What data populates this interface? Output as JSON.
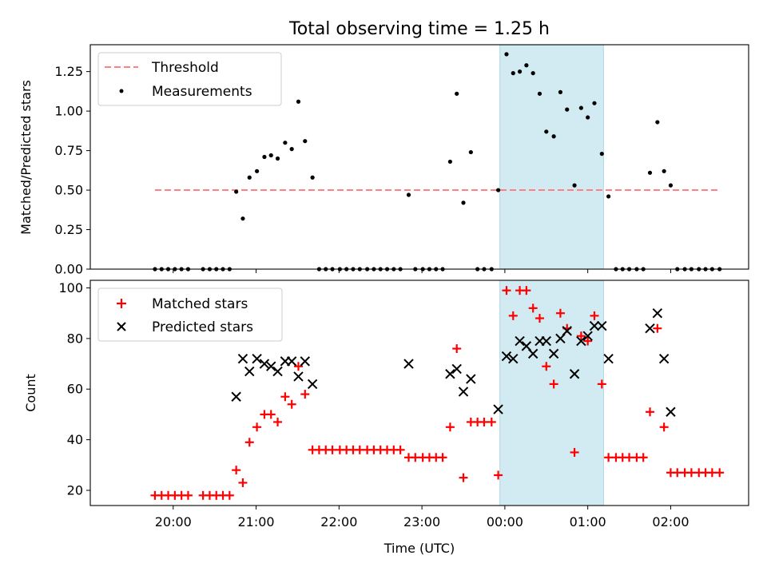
{
  "chart_data": [
    {
      "type": "scatter",
      "title": "Total observing time = 1.25 h",
      "ylabel": "Matched/Predicted stars",
      "xlabel": "",
      "ylim": [
        0,
        1.42
      ],
      "yticks": [
        "0.00",
        "0.25",
        "0.50",
        "0.75",
        "1.00",
        "1.25"
      ],
      "ytick_values": [
        0,
        0.25,
        0.5,
        0.75,
        1.0,
        1.25
      ],
      "grid": false,
      "legend_position": "top-left",
      "threshold": {
        "name": "Threshold",
        "value": 0.5,
        "x_start": 19.78,
        "x_end": 26.6,
        "color": "#ff8080"
      },
      "highlight_band": {
        "x_start": 23.94,
        "x_end": 25.19,
        "color": "#add8e6"
      },
      "series": [
        {
          "name": "Measurements",
          "color": "#000000",
          "marker": "dot",
          "x": [
            19.78,
            19.86,
            19.94,
            20.02,
            20.1,
            20.18,
            20.36,
            20.44,
            20.52,
            20.6,
            20.68,
            20.76,
            20.84,
            20.92,
            21.01,
            21.1,
            21.18,
            21.26,
            21.35,
            21.43,
            21.51,
            21.59,
            21.68,
            21.76,
            21.84,
            21.92,
            22.01,
            22.09,
            22.17,
            22.25,
            22.34,
            22.42,
            22.5,
            22.58,
            22.66,
            22.74,
            22.84,
            22.92,
            23.01,
            23.09,
            23.17,
            23.25,
            23.34,
            23.42,
            23.5,
            23.59,
            23.67,
            23.75,
            23.84,
            23.92,
            24.02,
            24.1,
            24.18,
            24.26,
            24.34,
            24.42,
            24.5,
            24.59,
            24.67,
            24.75,
            24.84,
            24.92,
            25.0,
            25.08,
            25.17,
            25.25,
            25.34,
            25.42,
            25.5,
            25.59,
            25.67,
            25.75,
            25.84,
            25.92,
            26.0,
            26.08,
            26.17,
            26.25,
            26.34,
            26.42,
            26.5,
            26.59
          ],
          "y": [
            0,
            0,
            0,
            0,
            0,
            0,
            0,
            0,
            0,
            0,
            0,
            0.49,
            0.32,
            0.58,
            0.62,
            0.71,
            0.72,
            0.7,
            0.8,
            0.76,
            1.06,
            0.81,
            0.58,
            0,
            0,
            0,
            0,
            0,
            0,
            0,
            0,
            0,
            0,
            0,
            0,
            0,
            0.47,
            0,
            0,
            0,
            0,
            0,
            0.68,
            1.11,
            0.42,
            0.74,
            0,
            0,
            0,
            0.5,
            1.36,
            1.24,
            1.25,
            1.29,
            1.24,
            1.11,
            0.87,
            0.84,
            1.12,
            1.01,
            0.53,
            1.02,
            0.96,
            1.05,
            0.73,
            0.46,
            0,
            0,
            0,
            0,
            0,
            0.61,
            0.93,
            0.62,
            0.53,
            0,
            0,
            0,
            0,
            0,
            0,
            0
          ]
        }
      ]
    },
    {
      "type": "scatter",
      "title": "",
      "ylabel": "Count",
      "xlabel": "Time (UTC)",
      "ylim": [
        14,
        103
      ],
      "yticks": [
        "20",
        "40",
        "60",
        "80",
        "100"
      ],
      "ytick_values": [
        20,
        40,
        60,
        80,
        100
      ],
      "xlim": [
        19.0,
        26.94
      ],
      "xticks": [
        "20:00",
        "21:00",
        "22:00",
        "23:00",
        "00:00",
        "01:00",
        "02:00"
      ],
      "xtick_values": [
        20,
        21,
        22,
        23,
        24,
        25,
        26
      ],
      "grid": false,
      "legend_position": "top-left",
      "highlight_band": {
        "x_start": 23.94,
        "x_end": 25.19,
        "color": "#add8e6"
      },
      "series": [
        {
          "name": "Matched stars",
          "color": "#ff0000",
          "marker": "plus",
          "x": [
            19.78,
            19.86,
            19.94,
            20.02,
            20.1,
            20.18,
            20.36,
            20.44,
            20.52,
            20.6,
            20.68,
            20.76,
            20.84,
            20.92,
            21.01,
            21.1,
            21.18,
            21.26,
            21.35,
            21.43,
            21.51,
            21.59,
            21.68,
            21.76,
            21.84,
            21.92,
            22.01,
            22.09,
            22.17,
            22.25,
            22.34,
            22.42,
            22.5,
            22.58,
            22.66,
            22.74,
            22.84,
            22.92,
            23.01,
            23.09,
            23.17,
            23.25,
            23.34,
            23.42,
            23.5,
            23.59,
            23.67,
            23.75,
            23.84,
            23.92,
            24.02,
            24.1,
            24.18,
            24.26,
            24.34,
            24.42,
            24.5,
            24.59,
            24.67,
            24.75,
            24.84,
            24.92,
            25.0,
            25.08,
            25.17,
            25.25,
            25.34,
            25.42,
            25.5,
            25.59,
            25.67,
            25.75,
            25.84,
            25.92,
            26.0,
            26.08,
            26.17,
            26.25,
            26.34,
            26.42,
            26.5,
            26.59
          ],
          "y": [
            18,
            18,
            18,
            18,
            18,
            18,
            18,
            18,
            18,
            18,
            18,
            28,
            23,
            39,
            45,
            50,
            50,
            47,
            57,
            54,
            69,
            58,
            36,
            36,
            36,
            36,
            36,
            36,
            36,
            36,
            36,
            36,
            36,
            36,
            36,
            36,
            33,
            33,
            33,
            33,
            33,
            33,
            45,
            76,
            25,
            47,
            47,
            47,
            47,
            26,
            99,
            89,
            99,
            99,
            92,
            88,
            69,
            62,
            90,
            84,
            35,
            81,
            79,
            89,
            62,
            33,
            33,
            33,
            33,
            33,
            33,
            51,
            84,
            45,
            27,
            27,
            27,
            27,
            27,
            27,
            27,
            27
          ]
        },
        {
          "name": "Predicted stars",
          "color": "#000000",
          "marker": "x",
          "x": [
            20.76,
            20.84,
            20.92,
            21.01,
            21.1,
            21.18,
            21.26,
            21.35,
            21.43,
            21.51,
            21.59,
            21.68,
            22.84,
            23.34,
            23.42,
            23.5,
            23.59,
            23.92,
            24.02,
            24.1,
            24.18,
            24.26,
            24.34,
            24.42,
            24.5,
            24.59,
            24.67,
            24.75,
            24.84,
            24.92,
            25.0,
            25.08,
            25.17,
            25.25,
            25.75,
            25.84,
            25.92,
            26.0
          ],
          "y": [
            57,
            72,
            67,
            72,
            70,
            69,
            67,
            71,
            71,
            65,
            71,
            62,
            70,
            66,
            68,
            59,
            64,
            52,
            73,
            72,
            79,
            77,
            74,
            79,
            79,
            74,
            80,
            83,
            66,
            79,
            81,
            85,
            85,
            72,
            84,
            90,
            72,
            51
          ]
        }
      ]
    }
  ]
}
